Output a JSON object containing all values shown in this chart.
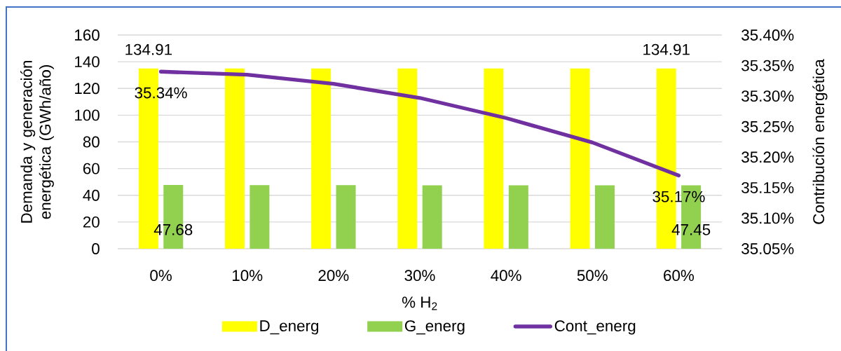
{
  "chart_data": {
    "type": "bar",
    "xlabel": "% H$_{2}$",
    "ylabel": "Demanda y generación energética (GWh/año)",
    "y2label": "Contribución energética",
    "categories": [
      "0%",
      "10%",
      "20%",
      "30%",
      "40%",
      "50%",
      "60%"
    ],
    "series": [
      {
        "name": "D_energ",
        "color": "#ffff00",
        "values": [
          134.91,
          135,
          135,
          135,
          135,
          135,
          134.91
        ],
        "value_labels": [
          "134.91",
          null,
          null,
          null,
          null,
          null,
          "134.91"
        ]
      },
      {
        "name": "G_energ",
        "color": "#92d050",
        "values": [
          47.68,
          47.6,
          47.6,
          47.5,
          47.5,
          47.5,
          47.45
        ],
        "value_labels": [
          "47.68",
          null,
          null,
          null,
          null,
          null,
          "47.45"
        ]
      },
      {
        "name": "Cont_energ",
        "type": "line",
        "axis": "y2",
        "color": "#7030a0",
        "values": [
          35.34,
          35.335,
          35.32,
          35.297,
          35.264,
          35.224,
          35.17
        ],
        "value_labels": [
          "35.34%",
          null,
          null,
          null,
          null,
          null,
          "35.17%"
        ]
      }
    ],
    "ylim": [
      0,
      160
    ],
    "yticks": [
      0,
      20,
      40,
      60,
      80,
      100,
      120,
      140,
      160
    ],
    "y2lim": [
      35.05,
      35.4
    ],
    "y2ticks": [
      {
        "value": 35.05,
        "label": "35.05%"
      },
      {
        "value": 35.1,
        "label": "35.10%"
      },
      {
        "value": 35.15,
        "label": "35.15%"
      },
      {
        "value": 35.2,
        "label": "35.20%"
      },
      {
        "value": 35.25,
        "label": "35.25%"
      },
      {
        "value": 35.3,
        "label": "35.30%"
      },
      {
        "value": 35.35,
        "label": "35.35%"
      },
      {
        "value": 35.4,
        "label": "35.40%"
      }
    ],
    "grid": "y",
    "legend": "bottom",
    "marker": "none",
    "line_style": "solid"
  }
}
